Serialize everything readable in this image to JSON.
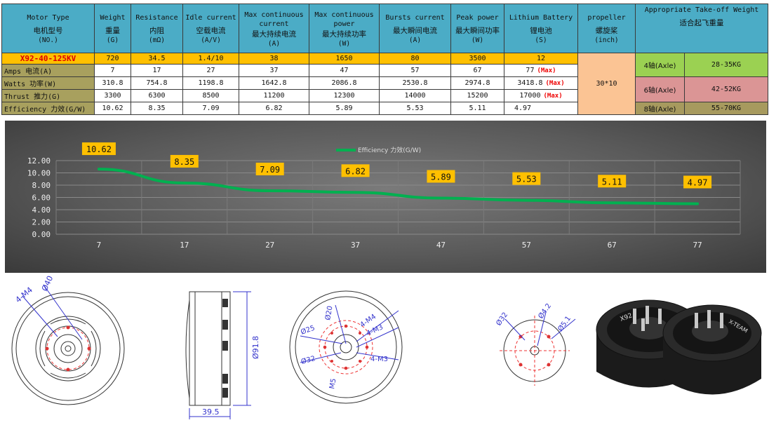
{
  "table": {
    "headers": [
      {
        "en": "Motor Type",
        "zh": "电机型号",
        "unit": "(NO.)"
      },
      {
        "en": "Weight",
        "zh": "重量",
        "unit": "(G)"
      },
      {
        "en": "Resistance",
        "zh": "内阻",
        "unit": "(mΩ)"
      },
      {
        "en": "Idle current",
        "zh": "空载电流",
        "unit": "(A/V)"
      },
      {
        "en": "Max continuous current",
        "zh": "最大持续电流",
        "unit": "(A)"
      },
      {
        "en": "Max continuous power",
        "zh": "最大持续功率",
        "unit": "(W)"
      },
      {
        "en": "Bursts current",
        "zh": "最大瞬间电流",
        "unit": "(A)"
      },
      {
        "en": "Peak power",
        "zh": "最大瞬间功率",
        "unit": "(W)"
      },
      {
        "en": "Lithium Battery",
        "zh": "锂电池",
        "unit": "(S)"
      },
      {
        "en": "propeller",
        "zh": "螺旋桨",
        "unit": "(inch)"
      },
      {
        "en": "Appropriate Take-off Weight",
        "zh": "适合起飞重量",
        "unit": ""
      }
    ],
    "model_row": [
      "X92-40-125KV",
      "720",
      "34.5",
      "1.4/10",
      "38",
      "1650",
      "80",
      "3500",
      "12"
    ],
    "rows": [
      {
        "label": "Amps 电流(A)",
        "values": [
          "7",
          "17",
          "27",
          "37",
          "47",
          "57",
          "67",
          "77"
        ],
        "max": "Max"
      },
      {
        "label": "Watts 功率(W)",
        "values": [
          "310.8",
          "754.8",
          "1198.8",
          "1642.8",
          "2086.8",
          "2530.8",
          "2974.8",
          "3418.8"
        ],
        "max": "Max"
      },
      {
        "label": "Thrust 推力(G)",
        "values": [
          "3300",
          "6300",
          "8500",
          "11200",
          "12300",
          "14000",
          "15200",
          "17000"
        ],
        "max": "Max"
      },
      {
        "label": "Efficiency 力效(G/W)",
        "values": [
          "10.62",
          "8.35",
          "7.09",
          "6.82",
          "5.89",
          "5.53",
          "5.11",
          "4.97"
        ],
        "max": ""
      }
    ],
    "propeller": "30*10",
    "takeoff": [
      {
        "axle": "4轴(Axle)",
        "weight": "28-35KG",
        "color": "#9bd152"
      },
      {
        "axle": "6轴(Axle)",
        "weight": "42-52KG",
        "color": "#db9595"
      },
      {
        "axle": "8轴(Axle)",
        "weight": "55-70KG",
        "color": "#a79a5e"
      }
    ]
  },
  "chart_data": {
    "type": "line",
    "legend": "Efficiency 力效(G/W)",
    "legend_position": "top-center",
    "x": [
      7,
      17,
      27,
      37,
      47,
      57,
      67,
      77
    ],
    "series": [
      {
        "name": "Efficiency 力效(G/W)",
        "values": [
          10.62,
          8.35,
          7.09,
          6.82,
          5.89,
          5.53,
          5.11,
          4.97
        ],
        "color": "#00b050"
      }
    ],
    "data_labels": [
      "10.62",
      "8.35",
      "7.09",
      "6.82",
      "5.89",
      "5.53",
      "5.11",
      "4.97"
    ],
    "ylim": [
      0,
      12
    ],
    "yticks": [
      "0.00",
      "2.00",
      "4.00",
      "6.00",
      "8.00",
      "10.00",
      "12.00"
    ],
    "grid": true,
    "label_color": "#ffc000"
  },
  "drawings": {
    "front": {
      "hole": "4-M4",
      "dia": "Ø40"
    },
    "side": {
      "height": "Ø91.8",
      "width": "39.5"
    },
    "rear": {
      "d20": "Ø20",
      "m4": "4-M4",
      "m3a": "4-M3",
      "d25": "Ø25",
      "d32": "Ø32",
      "m3b": "4-M3",
      "m5": "M5"
    },
    "prop_mount": {
      "d32": "Ø32",
      "d42": "Ø4.2",
      "d51": "Ø5.1"
    }
  },
  "photo": {
    "brand": "X-TEAM",
    "model": "X92"
  }
}
